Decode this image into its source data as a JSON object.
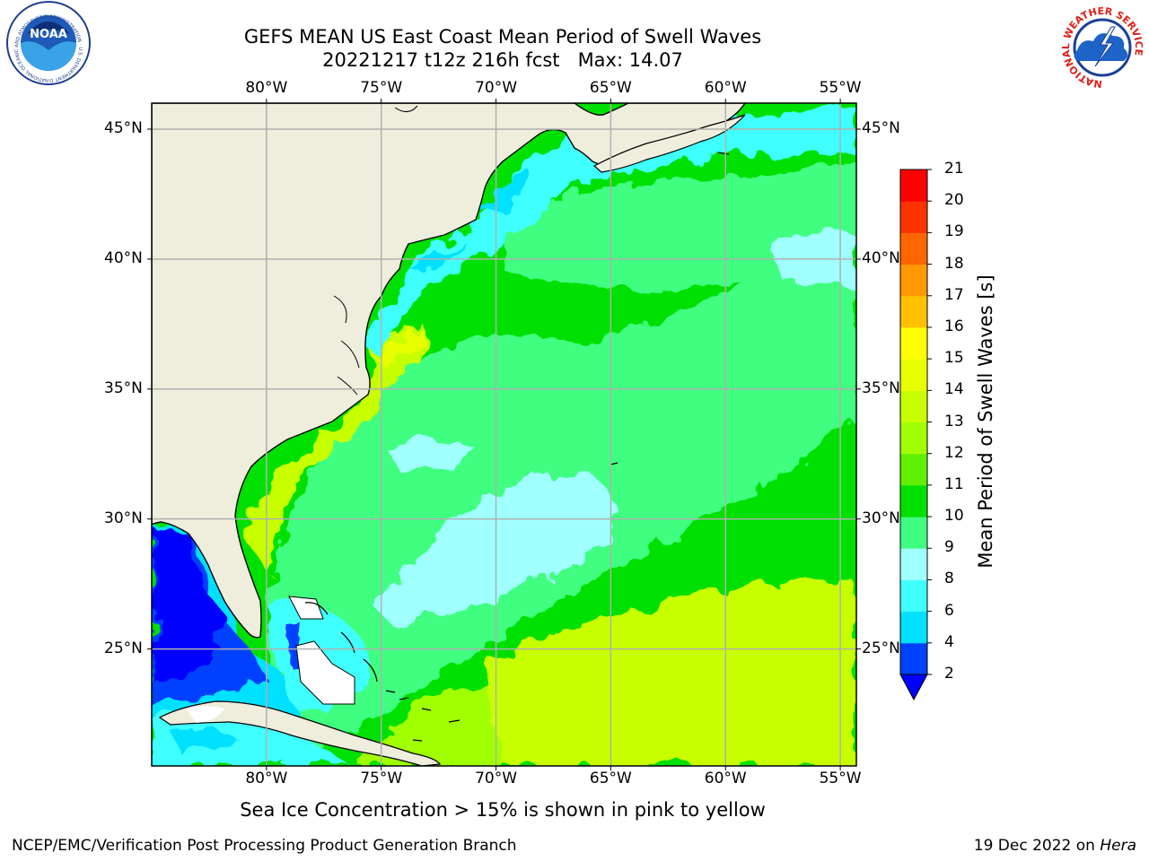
{
  "title": {
    "line1": "GEFS MEAN US East Coast Mean Period of Swell Waves",
    "line2": "20221217 t12z 216h fcst   Max: 14.07"
  },
  "map": {
    "lon_range": [
      -85,
      -54.3
    ],
    "lat_range": [
      20.5,
      46
    ],
    "lon_ticks": [
      "80°W",
      "75°W",
      "70°W",
      "65°W",
      "60°W",
      "55°W"
    ],
    "lat_ticks": [
      "45°N",
      "40°N",
      "35°N",
      "30°N",
      "25°N"
    ],
    "grid": true,
    "land_color": "#efeedd",
    "gridline_color": "#b0b0b0"
  },
  "colorbar": {
    "label": "Mean Period of Swell Waves [s]",
    "ticks": [
      "2",
      "4",
      "6",
      "8",
      "9",
      "10",
      "11",
      "12",
      "13",
      "14",
      "15",
      "16",
      "17",
      "18",
      "19",
      "20",
      "21"
    ],
    "colors": [
      "#0040ff",
      "#00e0ff",
      "#40ffff",
      "#a0ffff",
      "#40ff80",
      "#00e000",
      "#60f000",
      "#a0ff00",
      "#c8ff00",
      "#e8ff00",
      "#ffff00",
      "#ffc000",
      "#ff9900",
      "#ff6600",
      "#ff3300",
      "#ff0000"
    ],
    "under_color": "#0000ff",
    "orientation": "vertical",
    "extend": "min"
  },
  "logos": {
    "left": "NOAA",
    "left_ring": "NATIONAL OCEANIC AND ATMOSPHERIC ADMINISTRATION · U.S. DEPARTMENT OF COMMERCE",
    "right_ring": "NATIONAL WEATHER SERVICE"
  },
  "footer": {
    "note": "Sea Ice Concentration > 15% is shown in pink to yellow",
    "credit": "NCEP/EMC/Verification Post Processing Product Generation Branch",
    "date": "19 Dec 2022 on ",
    "machine": "Hera"
  }
}
